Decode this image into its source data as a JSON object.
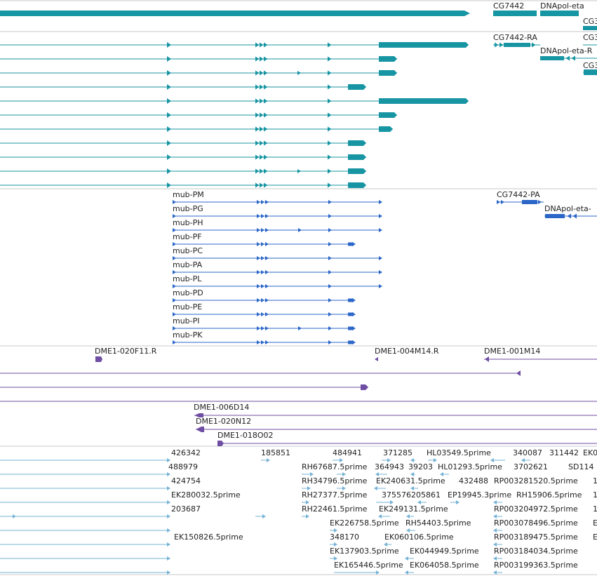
{
  "colors": {
    "gene": "#1795a3",
    "transcript": "#1795a3",
    "protein": "#2c67c8",
    "clone": "#6f4ea3",
    "est": "#76b3d6",
    "separator": "#c8c8c8"
  },
  "gene_track": {
    "labels": [
      "CG7442",
      "DNApol-eta",
      "CG3"
    ]
  },
  "transcript_track": {
    "labels": [
      "CG7442-RA",
      "DNApol-eta-R",
      "CG3",
      "CG3"
    ]
  },
  "protein_track": {
    "labels": [
      "mub-PM",
      "mub-PG",
      "mub-PH",
      "mub-PF",
      "mub-PC",
      "mub-PA",
      "mub-PL",
      "mub-PD",
      "mub-PE",
      "mub-PI",
      "mub-PK",
      "CG7442-PA",
      "DNApol-eta-"
    ]
  },
  "clone_track": {
    "labels": [
      "DME1-020F11.R",
      "DME1-004M14.R",
      "DME1-001M14",
      "DME1-006D14",
      "DME1-020N12",
      "DME1-018O02"
    ]
  },
  "est_track": {
    "labels": [
      "426342",
      "185851",
      "484941",
      "371285",
      "HL03549.5prime",
      "340087",
      "311442",
      "EK0",
      "488979",
      "RH67687.5prime",
      "364943",
      "39203",
      "HL01293.5prime",
      "3702621",
      "SD114",
      "424754",
      "RH34796.5prime",
      "EK240631.5prime",
      "432488",
      "RP003281520.5prime",
      "1",
      "EK280032.5prime",
      "RH27377.5prime",
      "375576205861",
      "EP19945.3prime",
      "RH15906.5prime",
      "1",
      "203687",
      "RH22461.5prime",
      "EK249131.5prime",
      "RP003204972.5prime",
      "1",
      "EK226758.5prime",
      "RH54403.5prime",
      "RP003078496.5prime",
      "E",
      "EK150826.5prime",
      "348170",
      "EK060106.5prime",
      "RP003189475.5prime",
      "E",
      "EK137903.5prime",
      "EK044949.5prime",
      "RP003184034.5prime",
      "EK165446.5prime",
      "EK064058.5prime",
      "RP003199363.5prime"
    ]
  }
}
